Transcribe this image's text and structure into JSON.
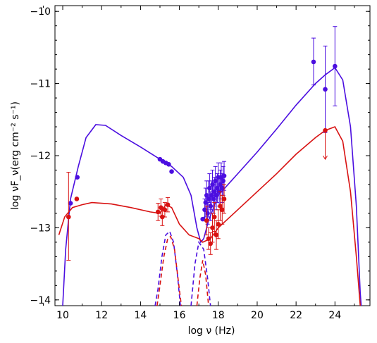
{
  "chart_data": {
    "type": "scatter",
    "title": "",
    "xlabel": "log ν (Hz)",
    "ylabel": "log νF_ν(erg cm⁻² s⁻¹)",
    "xlim": [
      9.6,
      25.8
    ],
    "ylim": [
      -14.08,
      -9.92
    ],
    "xticks": [
      10,
      12,
      14,
      16,
      18,
      20,
      22,
      24
    ],
    "yticks": [
      -14,
      -13,
      -12,
      -11,
      -10
    ],
    "xtick_labels": [
      "10",
      "12",
      "14",
      "16",
      "18",
      "20",
      "22",
      "24"
    ],
    "ytick_labels": [
      "−14",
      "−13",
      "−12",
      "−11",
      "−10"
    ],
    "grid": false,
    "colors": {
      "blue": "#4b0ee0",
      "red": "#d81212"
    },
    "series": [
      {
        "color": "blue",
        "kind": "points",
        "points": [
          {
            "x": 10.4,
            "y": -12.66
          },
          {
            "x": 10.75,
            "y": -12.3
          },
          {
            "x": 15.0,
            "y": -12.05
          },
          {
            "x": 15.15,
            "y": -12.08
          },
          {
            "x": 15.3,
            "y": -12.1
          },
          {
            "x": 15.45,
            "y": -12.12
          },
          {
            "x": 15.6,
            "y": -12.22
          },
          {
            "x": 17.2,
            "y": -12.88
          },
          {
            "x": 17.3,
            "y": -12.75,
            "err": [
              0.15,
              0.15
            ]
          },
          {
            "x": 17.35,
            "y": -12.65,
            "err": [
              0.2,
              0.2
            ]
          },
          {
            "x": 17.4,
            "y": -12.55,
            "err": [
              0.2,
              0.2
            ]
          },
          {
            "x": 17.45,
            "y": -12.8,
            "err": [
              0.15,
              0.15
            ]
          },
          {
            "x": 17.5,
            "y": -12.6,
            "err": [
              0.25,
              0.25
            ]
          },
          {
            "x": 17.55,
            "y": -12.45,
            "err": [
              0.2,
              0.2
            ]
          },
          {
            "x": 17.6,
            "y": -12.7,
            "err": [
              0.2,
              0.2
            ]
          },
          {
            "x": 17.65,
            "y": -12.55,
            "err": [
              0.2,
              0.2
            ]
          },
          {
            "x": 17.7,
            "y": -12.4,
            "err": [
              0.2,
              0.2
            ]
          },
          {
            "x": 17.75,
            "y": -12.6,
            "err": [
              0.2,
              0.2
            ]
          },
          {
            "x": 17.8,
            "y": -12.5,
            "err": [
              0.2,
              0.2
            ]
          },
          {
            "x": 17.85,
            "y": -12.35,
            "err": [
              0.2,
              0.2
            ]
          },
          {
            "x": 17.9,
            "y": -12.55,
            "err": [
              0.2,
              0.2
            ]
          },
          {
            "x": 17.95,
            "y": -12.45,
            "err": [
              0.2,
              0.2
            ]
          },
          {
            "x": 18.0,
            "y": -12.3,
            "err": [
              0.2,
              0.2
            ]
          },
          {
            "x": 18.05,
            "y": -12.5,
            "err": [
              0.2,
              0.2
            ]
          },
          {
            "x": 18.1,
            "y": -12.4,
            "err": [
              0.2,
              0.2
            ]
          },
          {
            "x": 18.15,
            "y": -12.3,
            "err": [
              0.2,
              0.2
            ]
          },
          {
            "x": 18.2,
            "y": -12.45,
            "err": [
              0.2,
              0.2
            ]
          },
          {
            "x": 18.25,
            "y": -12.35,
            "err": [
              0.2,
              0.2
            ]
          },
          {
            "x": 18.3,
            "y": -12.28,
            "err": [
              0.2,
              0.2
            ]
          },
          {
            "x": 22.9,
            "y": -10.7,
            "err": [
              0.32,
              0.33
            ]
          },
          {
            "x": 23.5,
            "y": -11.08,
            "err": [
              0.6,
              0.6
            ]
          },
          {
            "x": 24.0,
            "y": -10.76,
            "err": [
              0.55,
              0.55
            ]
          }
        ]
      },
      {
        "color": "red",
        "kind": "points",
        "points": [
          {
            "x": 10.3,
            "y": -12.85,
            "err": [
              0.6,
              0.62
            ]
          },
          {
            "x": 10.72,
            "y": -12.6
          },
          {
            "x": 14.9,
            "y": -12.78,
            "err": [
              0.12,
              0.12
            ]
          },
          {
            "x": 15.05,
            "y": -12.72,
            "err": [
              0.12,
              0.12
            ]
          },
          {
            "x": 15.12,
            "y": -12.85,
            "err": [
              0.12,
              0.12
            ]
          },
          {
            "x": 15.25,
            "y": -12.75,
            "err": [
              0.1,
              0.1
            ]
          },
          {
            "x": 15.4,
            "y": -12.68,
            "err": [
              0.1,
              0.1
            ]
          },
          {
            "x": 17.4,
            "y": -12.9,
            "err": [
              0.2,
              0.2
            ]
          },
          {
            "x": 17.5,
            "y": -13.15,
            "err": [
              0.15,
              0.15
            ]
          },
          {
            "x": 17.6,
            "y": -13.22,
            "err": [
              0.15,
              0.15
            ]
          },
          {
            "x": 17.7,
            "y": -13.0,
            "err": [
              0.2,
              0.2
            ]
          },
          {
            "x": 17.8,
            "y": -12.85,
            "err": [
              0.2,
              0.2
            ]
          },
          {
            "x": 17.9,
            "y": -13.1,
            "err": [
              0.2,
              0.2
            ]
          },
          {
            "x": 18.0,
            "y": -12.95,
            "err": [
              0.2,
              0.2
            ]
          },
          {
            "x": 18.1,
            "y": -12.7,
            "err": [
              0.2,
              0.2
            ]
          },
          {
            "x": 18.2,
            "y": -12.75,
            "err": [
              0.2,
              0.2
            ]
          },
          {
            "x": 18.3,
            "y": -12.6,
            "err": [
              0.2,
              0.2
            ]
          },
          {
            "x": 23.5,
            "y": -11.65,
            "upper_limit_to": -12.05
          }
        ]
      },
      {
        "color": "blue",
        "kind": "line",
        "style": "solid",
        "points": [
          [
            10.0,
            -14.1
          ],
          [
            10.15,
            -13.3
          ],
          [
            10.4,
            -12.6
          ],
          [
            10.8,
            -12.15
          ],
          [
            11.2,
            -11.75
          ],
          [
            11.7,
            -11.57
          ],
          [
            12.2,
            -11.58
          ],
          [
            13.0,
            -11.72
          ],
          [
            14.0,
            -11.88
          ],
          [
            15.0,
            -12.05
          ],
          [
            15.6,
            -12.15
          ],
          [
            16.2,
            -12.3
          ],
          [
            16.6,
            -12.55
          ],
          [
            16.9,
            -13.0
          ],
          [
            17.1,
            -13.2
          ],
          [
            17.25,
            -13.15
          ],
          [
            17.5,
            -12.9
          ],
          [
            18.0,
            -12.55
          ],
          [
            19.0,
            -12.25
          ],
          [
            20.0,
            -11.95
          ],
          [
            21.0,
            -11.63
          ],
          [
            22.0,
            -11.3
          ],
          [
            23.0,
            -11.0
          ],
          [
            23.5,
            -10.88
          ],
          [
            24.0,
            -10.78
          ],
          [
            24.4,
            -10.95
          ],
          [
            24.8,
            -11.6
          ],
          [
            25.1,
            -12.7
          ],
          [
            25.3,
            -13.9
          ],
          [
            25.35,
            -14.1
          ]
        ]
      },
      {
        "color": "red",
        "kind": "line",
        "style": "solid",
        "points": [
          [
            9.8,
            -13.1
          ],
          [
            10.1,
            -12.85
          ],
          [
            10.5,
            -12.72
          ],
          [
            11.0,
            -12.68
          ],
          [
            11.5,
            -12.65
          ],
          [
            12.5,
            -12.67
          ],
          [
            13.5,
            -12.72
          ],
          [
            14.5,
            -12.78
          ],
          [
            15.0,
            -12.8
          ],
          [
            15.3,
            -12.68
          ],
          [
            15.6,
            -12.72
          ],
          [
            16.0,
            -12.95
          ],
          [
            16.5,
            -13.1
          ],
          [
            17.0,
            -13.15
          ],
          [
            17.2,
            -13.2
          ],
          [
            17.6,
            -13.15
          ],
          [
            18.0,
            -13.0
          ],
          [
            19.0,
            -12.75
          ],
          [
            20.0,
            -12.5
          ],
          [
            21.0,
            -12.25
          ],
          [
            22.0,
            -11.98
          ],
          [
            23.0,
            -11.75
          ],
          [
            23.5,
            -11.65
          ],
          [
            24.0,
            -11.6
          ],
          [
            24.4,
            -11.8
          ],
          [
            24.8,
            -12.5
          ],
          [
            25.1,
            -13.4
          ],
          [
            25.3,
            -14.1
          ]
        ]
      },
      {
        "color": "blue",
        "kind": "line",
        "style": "dashed",
        "points": [
          [
            14.75,
            -14.1
          ],
          [
            14.9,
            -13.85
          ],
          [
            15.1,
            -13.4
          ],
          [
            15.3,
            -13.1
          ],
          [
            15.5,
            -13.05
          ],
          [
            15.7,
            -13.2
          ],
          [
            15.9,
            -13.65
          ],
          [
            16.05,
            -14.1
          ]
        ]
      },
      {
        "color": "red",
        "kind": "line",
        "style": "dashed",
        "points": [
          [
            14.85,
            -14.1
          ],
          [
            15.0,
            -13.8
          ],
          [
            15.2,
            -13.4
          ],
          [
            15.4,
            -13.15
          ],
          [
            15.55,
            -13.12
          ],
          [
            15.75,
            -13.3
          ],
          [
            15.95,
            -13.75
          ],
          [
            16.1,
            -14.1
          ]
        ]
      },
      {
        "color": "blue",
        "kind": "line",
        "style": "dashed",
        "points": [
          [
            16.6,
            -14.1
          ],
          [
            16.8,
            -13.5
          ],
          [
            17.0,
            -13.2
          ],
          [
            17.25,
            -13.3
          ],
          [
            17.45,
            -13.7
          ],
          [
            17.6,
            -14.1
          ]
        ]
      },
      {
        "color": "red",
        "kind": "line",
        "style": "dashed",
        "points": [
          [
            16.9,
            -14.1
          ],
          [
            17.05,
            -13.7
          ],
          [
            17.2,
            -13.45
          ],
          [
            17.35,
            -13.65
          ],
          [
            17.5,
            -14.1
          ]
        ]
      }
    ]
  }
}
